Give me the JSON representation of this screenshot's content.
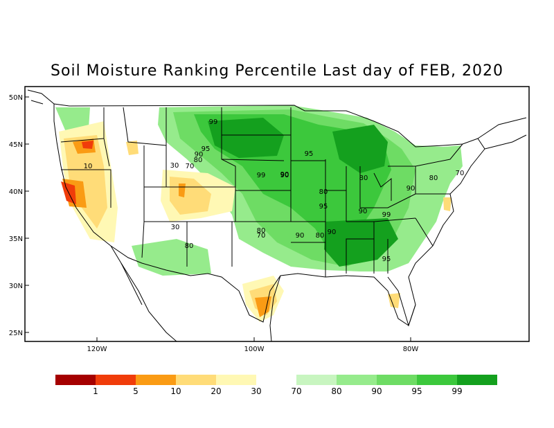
{
  "title": "Soil Moisture Ranking Percentile Last day of FEB, 2020",
  "axes": {
    "lat_ticks": [
      "50N",
      "45N",
      "40N",
      "35N",
      "30N",
      "25N"
    ],
    "lon_ticks": [
      "120W",
      "100W",
      "80W"
    ]
  },
  "contour_labels": [
    "99",
    "95",
    "90",
    "80",
    "70",
    "10",
    "30",
    "30",
    "80",
    "99",
    "90",
    "80",
    "95",
    "90",
    "80",
    "90",
    "99",
    "95",
    "80",
    "90",
    "70",
    "90",
    "80",
    "70",
    "90",
    "80",
    "95"
  ],
  "legend": {
    "colors": [
      "#a50000",
      "#f03c0a",
      "#fa9b14",
      "#ffdc78",
      "#fff8b4",
      "#c8f5c0",
      "#96eb8c",
      "#6edc64",
      "#3cc83c",
      "#14a01e"
    ],
    "labels": [
      "1",
      "5",
      "10",
      "20",
      "30",
      "70",
      "80",
      "90",
      "95",
      "99"
    ]
  }
}
